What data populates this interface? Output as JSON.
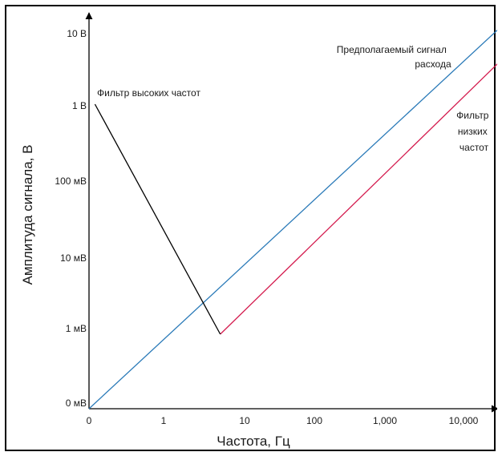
{
  "chart_data": {
    "type": "line",
    "xlabel": "Частота, Гц",
    "ylabel": "Амплитуда сигнала, В",
    "x_ticks": [
      "0",
      "1",
      "10",
      "100",
      "1,000",
      "10,000"
    ],
    "y_ticks": [
      "0 мВ",
      "1 мВ",
      "10 мВ",
      "100 мВ",
      "1 В",
      "10 В"
    ],
    "x_scale": "log-like (decades)",
    "y_scale": "log-like (decades)",
    "grid": false,
    "legend": "none",
    "series": [
      {
        "name": "Предполагаемый сигнал расхода",
        "label_lines": [
          "Предполагаемый сигнал",
          "расхода"
        ],
        "color": "#2a7ab8",
        "points": [
          [
            0,
            0
          ],
          [
            5.8,
            5.5
          ]
        ]
      },
      {
        "name": "Фильтр низких частот",
        "label_lines": [
          "Фильтр",
          "низких",
          "частот"
        ],
        "color": "#d41b4e",
        "points": [
          [
            1.7,
            1.0
          ],
          [
            5.8,
            5.05
          ]
        ]
      },
      {
        "name": "Фильтр высоких частот",
        "label_lines": [
          "Фильтр высоких частот"
        ],
        "color": "#000000",
        "points": [
          [
            0.08,
            4.1
          ],
          [
            1.7,
            1.0
          ]
        ]
      }
    ]
  }
}
